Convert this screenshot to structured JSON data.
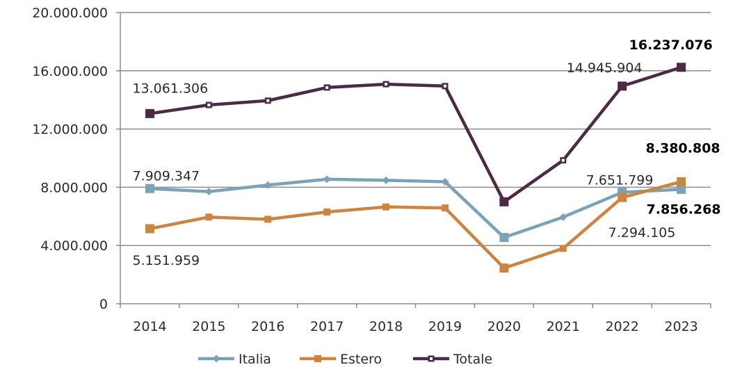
{
  "chart_data": {
    "type": "line",
    "title": "",
    "xlabel": "",
    "ylabel": "",
    "categories": [
      "2014",
      "2015",
      "2016",
      "2017",
      "2018",
      "2019",
      "2020",
      "2021",
      "2022",
      "2023"
    ],
    "ylim": [
      0,
      20000000
    ],
    "yticks": [
      0,
      4000000,
      8000000,
      12000000,
      16000000,
      20000000
    ],
    "ytick_labels": [
      "0",
      "4.000.000",
      "8.000.000",
      "12.000.000",
      "16.000.000",
      "20.000.000"
    ],
    "grid": true,
    "legend_position": "bottom",
    "series": [
      {
        "name": "Italia",
        "color": "#7ba3b8",
        "marker": "diamond",
        "values": [
          7909347,
          7700000,
          8150000,
          8550000,
          8480000,
          8380000,
          4550000,
          5950000,
          7651799,
          7856268
        ]
      },
      {
        "name": "Estero",
        "color": "#cc843f",
        "marker": "square",
        "values": [
          5151959,
          5950000,
          5800000,
          6300000,
          6650000,
          6580000,
          2450000,
          3800000,
          7294105,
          8380808
        ]
      },
      {
        "name": "Totale",
        "color": "#4b2a45",
        "marker": "small-square",
        "values": [
          13061306,
          13650000,
          13950000,
          14850000,
          15080000,
          14950000,
          7000000,
          9850000,
          14945904,
          16237076
        ]
      }
    ],
    "data_labels": [
      {
        "series": 2,
        "index": 0,
        "text": "13.061.306",
        "bold": false
      },
      {
        "series": 2,
        "index": 8,
        "text": "14.945.904",
        "bold": false
      },
      {
        "series": 2,
        "index": 9,
        "text": "16.237.076",
        "bold": true
      },
      {
        "series": 0,
        "index": 0,
        "text": "7.909.347",
        "bold": false
      },
      {
        "series": 0,
        "index": 8,
        "text": "7.651.799",
        "bold": false
      },
      {
        "series": 0,
        "index": 9,
        "text": "7.856.268",
        "bold": true
      },
      {
        "series": 1,
        "index": 0,
        "text": "5.151.959",
        "bold": false
      },
      {
        "series": 1,
        "index": 8,
        "text": "7.294.105",
        "bold": false
      },
      {
        "series": 1,
        "index": 9,
        "text": "8.380.808",
        "bold": true
      }
    ]
  }
}
